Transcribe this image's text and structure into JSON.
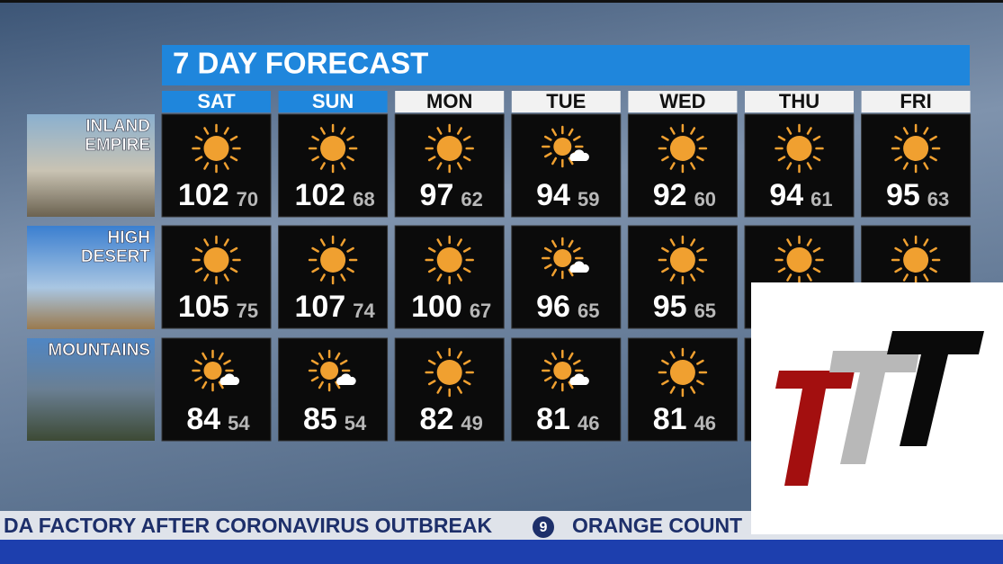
{
  "header": {
    "title": "7 DAY FORECAST"
  },
  "days": [
    "SAT",
    "SUN",
    "MON",
    "TUE",
    "WED",
    "THU",
    "FRI"
  ],
  "highlighted_days": 2,
  "regions": [
    {
      "label": [
        "INLAND",
        "EMPIRE"
      ],
      "forecasts": [
        {
          "icon": "sunny",
          "hi": 102,
          "lo": 70
        },
        {
          "icon": "sunny",
          "hi": 102,
          "lo": 68
        },
        {
          "icon": "sunny",
          "hi": 97,
          "lo": 62
        },
        {
          "icon": "partly-sunny",
          "hi": 94,
          "lo": 59
        },
        {
          "icon": "sunny",
          "hi": 92,
          "lo": 60
        },
        {
          "icon": "sunny",
          "hi": 94,
          "lo": 61
        },
        {
          "icon": "sunny",
          "hi": 95,
          "lo": 63
        }
      ]
    },
    {
      "label": [
        "HIGH",
        "DESERT"
      ],
      "forecasts": [
        {
          "icon": "sunny",
          "hi": 105,
          "lo": 75
        },
        {
          "icon": "sunny",
          "hi": 107,
          "lo": 74
        },
        {
          "icon": "sunny",
          "hi": 100,
          "lo": 67
        },
        {
          "icon": "partly-sunny",
          "hi": 96,
          "lo": 65
        },
        {
          "icon": "sunny",
          "hi": 95,
          "lo": 65
        },
        {
          "icon": "sunny"
        },
        {
          "icon": "sunny"
        }
      ]
    },
    {
      "label": [
        "MOUNTAINS"
      ],
      "forecasts": [
        {
          "icon": "partly-sunny",
          "hi": 84,
          "lo": 54
        },
        {
          "icon": "partly-sunny",
          "hi": 85,
          "lo": 54
        },
        {
          "icon": "sunny",
          "hi": 82,
          "lo": 49
        },
        {
          "icon": "partly-sunny",
          "hi": 81,
          "lo": 46
        },
        {
          "icon": "sunny",
          "hi": 81,
          "lo": 46
        },
        null,
        null
      ]
    }
  ],
  "ticker": {
    "left": "DA FACTORY AFTER CORONAVIRUS OUTBREAK",
    "logo": "9",
    "right": "ORANGE COUNT"
  }
}
